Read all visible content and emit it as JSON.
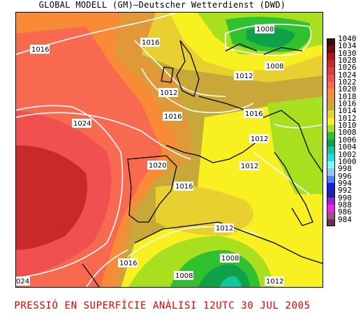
{
  "header": {
    "title": "GLOBAL MODELL (GM)—Deutscher Wetterdienst (DWD)"
  },
  "footer": {
    "caption": "PRESSIÓ EN SUPERFÍCIE   ANÀLISI 12UTC 30 JUL 2005"
  },
  "legend": {
    "levels": [
      {
        "label": "1040",
        "color": "#3d0a0a"
      },
      {
        "label": "1034",
        "color": "#6e1010"
      },
      {
        "label": "1030",
        "color": "#b01818"
      },
      {
        "label": "1028",
        "color": "#c82a2a"
      },
      {
        "label": "1026",
        "color": "#e03a3a"
      },
      {
        "label": "1024",
        "color": "#f05050"
      },
      {
        "label": "1022",
        "color": "#f86a50"
      },
      {
        "label": "1020",
        "color": "#f88a38"
      },
      {
        "label": "1018",
        "color": "#e09838"
      },
      {
        "label": "1016",
        "color": "#c8a838"
      },
      {
        "label": "1014",
        "color": "#e8d030"
      },
      {
        "label": "1012",
        "color": "#f8f020"
      },
      {
        "label": "1010",
        "color": "#a8e020"
      },
      {
        "label": "1008",
        "color": "#30c030"
      },
      {
        "label": "1006",
        "color": "#10a048"
      },
      {
        "label": "1004",
        "color": "#10c8a0"
      },
      {
        "label": "1002",
        "color": "#20e0e0"
      },
      {
        "label": "1000",
        "color": "#80f8f8"
      },
      {
        "label": "998",
        "color": "#90c8f8"
      },
      {
        "label": "996",
        "color": "#5080f8"
      },
      {
        "label": "994",
        "color": "#1020e8"
      },
      {
        "label": "992",
        "color": "#2020a8"
      },
      {
        "label": "990",
        "color": "#a020c8"
      },
      {
        "label": "988",
        "color": "#f020f8"
      },
      {
        "label": "986",
        "color": "#a05080"
      },
      {
        "label": "984",
        "color": "#702860"
      }
    ]
  },
  "isobar_labels": {
    "l1016_nw": "1016",
    "l1016_north": "1016",
    "l1008_ne": "1008",
    "l1008_east": "1008",
    "l1012_a": "1012",
    "l1012_b": "1012",
    "l1016_c": "1016",
    "l1016_d": "1016",
    "l1024": "1024",
    "l1012_c": "1012",
    "l1020": "1020",
    "l1012_d": "1012",
    "l1016_e": "1016",
    "l1012_e": "1012",
    "l1008_s": "1008",
    "l1016_f": "1016",
    "l1008_sw": "1008",
    "l1012_se": "1012",
    "l1024_edge": "024"
  }
}
